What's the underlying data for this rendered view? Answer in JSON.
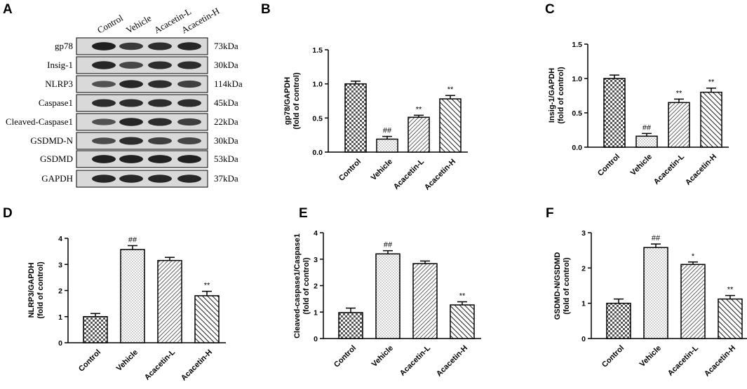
{
  "blot": {
    "letter": "A",
    "lanes": [
      "Control",
      "Vehicle",
      "Acacetin-L",
      "Acacetin-H"
    ],
    "rows": [
      {
        "protein": "gp78",
        "size": "73kDa",
        "intensity": [
          0.95,
          0.75,
          0.85,
          0.9
        ]
      },
      {
        "protein": "Insig-1",
        "size": "30kDa",
        "intensity": [
          0.9,
          0.65,
          0.85,
          0.85
        ]
      },
      {
        "protein": "NLRP3",
        "size": "114kDa",
        "intensity": [
          0.55,
          0.9,
          0.85,
          0.7
        ]
      },
      {
        "protein": "Caspase1",
        "size": "45kDa",
        "intensity": [
          0.85,
          0.85,
          0.85,
          0.85
        ]
      },
      {
        "protein": "Cleaved-Caspase1",
        "size": "22kDa",
        "intensity": [
          0.55,
          0.9,
          0.85,
          0.7
        ]
      },
      {
        "protein": "GSDMD-N",
        "size": "30kDa",
        "intensity": [
          0.6,
          0.85,
          0.7,
          0.65
        ]
      },
      {
        "protein": "GSDMD",
        "size": "53kDa",
        "intensity": [
          0.95,
          0.95,
          0.95,
          0.95
        ]
      },
      {
        "protein": "GAPDH",
        "size": "37kDa",
        "intensity": [
          0.9,
          0.9,
          0.9,
          0.9
        ]
      }
    ]
  },
  "colors": {
    "bar_stroke": "#000000",
    "axis": "#000000",
    "band": "#1a1a1a",
    "blot_bg": "#d9d9d9"
  },
  "chart_data": [
    {
      "letter": "B",
      "type": "bar",
      "categories": [
        "Control",
        "Vehicle",
        "Acacetin-L",
        "Acacetin-H"
      ],
      "values": [
        1.0,
        0.19,
        0.51,
        0.78
      ],
      "errors": [
        0.04,
        0.04,
        0.03,
        0.05
      ],
      "significance": [
        "",
        "##",
        "**",
        "**"
      ],
      "ylabel": [
        "gp78/GAPDH",
        "(fold of control)"
      ],
      "ylim": [
        0,
        1.5
      ],
      "yticks": [
        "0.0",
        "0.5",
        "1.0",
        "1.5"
      ]
    },
    {
      "letter": "C",
      "type": "bar",
      "categories": [
        "Control",
        "Vehicle",
        "Acacetin-L",
        "Acacetin-H"
      ],
      "values": [
        1.0,
        0.16,
        0.65,
        0.8
      ],
      "errors": [
        0.05,
        0.04,
        0.05,
        0.06
      ],
      "significance": [
        "",
        "##",
        "**",
        "**"
      ],
      "ylabel": [
        "Insig-1/GAPDH",
        "(fold of control)"
      ],
      "ylim": [
        0,
        1.5
      ],
      "yticks": [
        "0.0",
        "0.5",
        "1.0",
        "1.5"
      ]
    },
    {
      "letter": "D",
      "type": "bar",
      "categories": [
        "Control",
        "Vehicle",
        "Acacetin-L",
        "Acacetin-H"
      ],
      "values": [
        1.0,
        3.57,
        3.15,
        1.8
      ],
      "errors": [
        0.12,
        0.15,
        0.12,
        0.17
      ],
      "significance": [
        "",
        "##",
        "",
        "**"
      ],
      "ylabel": [
        "NLRP3/GAPDH",
        "(fold of control)"
      ],
      "ylim": [
        0,
        4
      ],
      "yticks": [
        "0",
        "1",
        "2",
        "3",
        "4"
      ]
    },
    {
      "letter": "E",
      "type": "bar",
      "categories": [
        "Control",
        "Vehicle",
        "Acacetin-L",
        "Acacetin-H"
      ],
      "values": [
        0.98,
        3.2,
        2.83,
        1.27
      ],
      "errors": [
        0.17,
        0.12,
        0.1,
        0.12
      ],
      "significance": [
        "",
        "##",
        "",
        "**"
      ],
      "ylabel": [
        "Cleaved-caspase1/Caspase1",
        "(fold of control)"
      ],
      "ylim": [
        0,
        4
      ],
      "yticks": [
        "0",
        "1",
        "2",
        "3",
        "4"
      ]
    },
    {
      "letter": "F",
      "type": "bar",
      "categories": [
        "Control",
        "Vehicle",
        "Acacetin-L",
        "Acacetin-H"
      ],
      "values": [
        1.0,
        2.58,
        2.1,
        1.12
      ],
      "errors": [
        0.12,
        0.1,
        0.07,
        0.1
      ],
      "significance": [
        "",
        "##",
        "*",
        "**"
      ],
      "ylabel": [
        "GSDMD-N/GSDMD",
        "(fold of control)"
      ],
      "ylim": [
        0,
        3
      ],
      "yticks": [
        "0",
        "1",
        "2",
        "3"
      ]
    }
  ]
}
